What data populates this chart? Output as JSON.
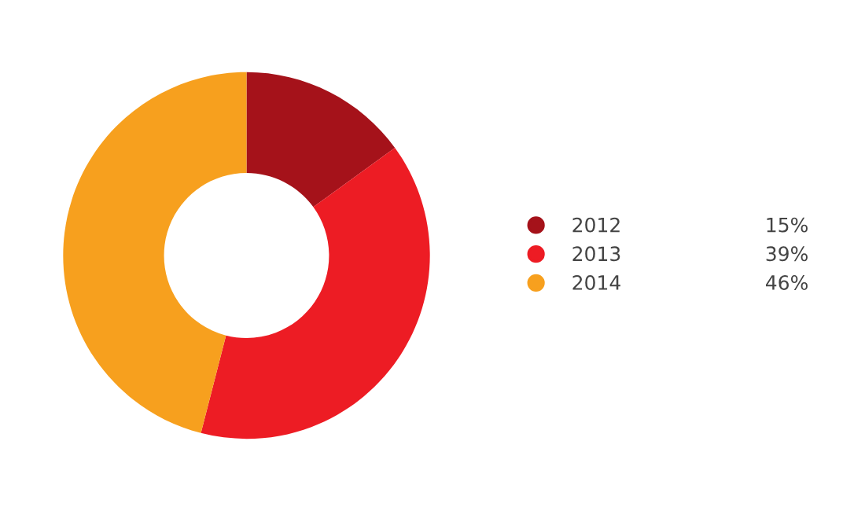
{
  "chart_data": {
    "type": "donut",
    "categories": [
      "2012",
      "2013",
      "2014"
    ],
    "values": [
      15,
      39,
      46
    ],
    "colors": [
      "#a5121a",
      "#ed1c24",
      "#f7a01e"
    ],
    "value_labels": [
      "15%",
      "39%",
      "46%"
    ],
    "legend": "right"
  }
}
